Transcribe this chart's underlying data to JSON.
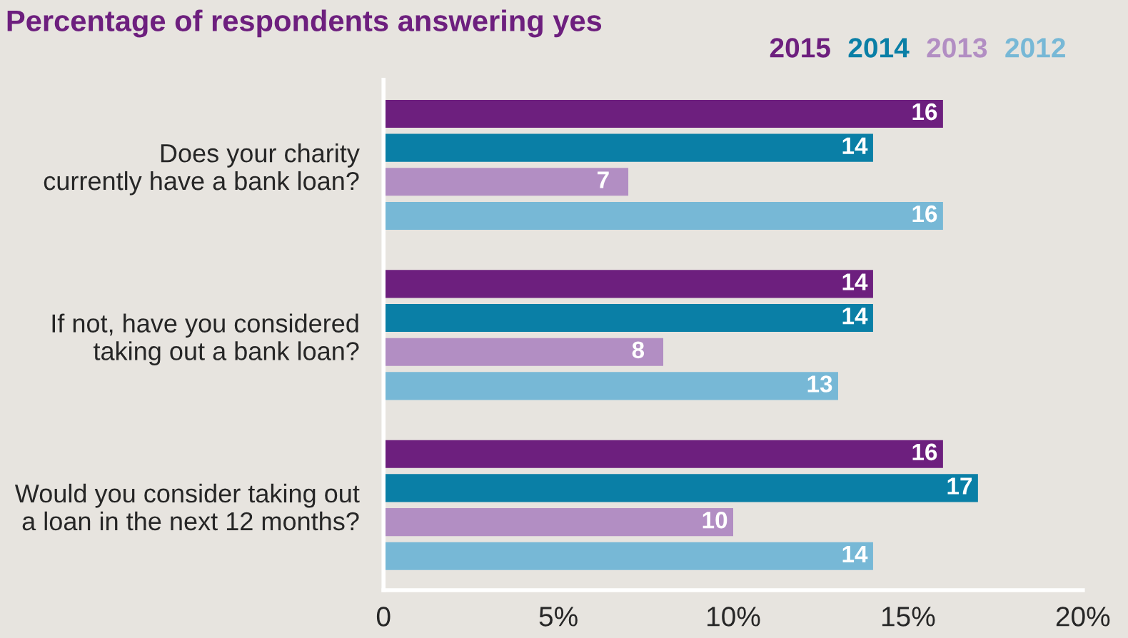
{
  "chart_data": {
    "type": "bar",
    "orientation": "horizontal",
    "title": "Percentage of respondents answering yes",
    "categories": [
      "Does your charity currently have a bank loan?",
      "If not, have you considered taking out a bank loan?",
      "Would you consider taking out a loan in the next 12 months?"
    ],
    "series": [
      {
        "name": "2015",
        "color": "#6d1f7e",
        "values": [
          16,
          14,
          16
        ]
      },
      {
        "name": "2014",
        "color": "#0a7fa6",
        "values": [
          14,
          14,
          17
        ]
      },
      {
        "name": "2013",
        "color": "#b28ec3",
        "values": [
          7,
          8,
          10
        ]
      },
      {
        "name": "2012",
        "color": "#77b8d6",
        "values": [
          16,
          13,
          14
        ]
      }
    ],
    "xlim": [
      0,
      20
    ],
    "xticks": [
      0,
      {
        "value": 5,
        "label": "5%"
      },
      {
        "value": 10,
        "label": "10%"
      },
      {
        "value": 15,
        "label": "15%"
      },
      {
        "value": 20,
        "label": "20%"
      }
    ],
    "data_labels": true,
    "legend": "top right",
    "grid": false
  }
}
